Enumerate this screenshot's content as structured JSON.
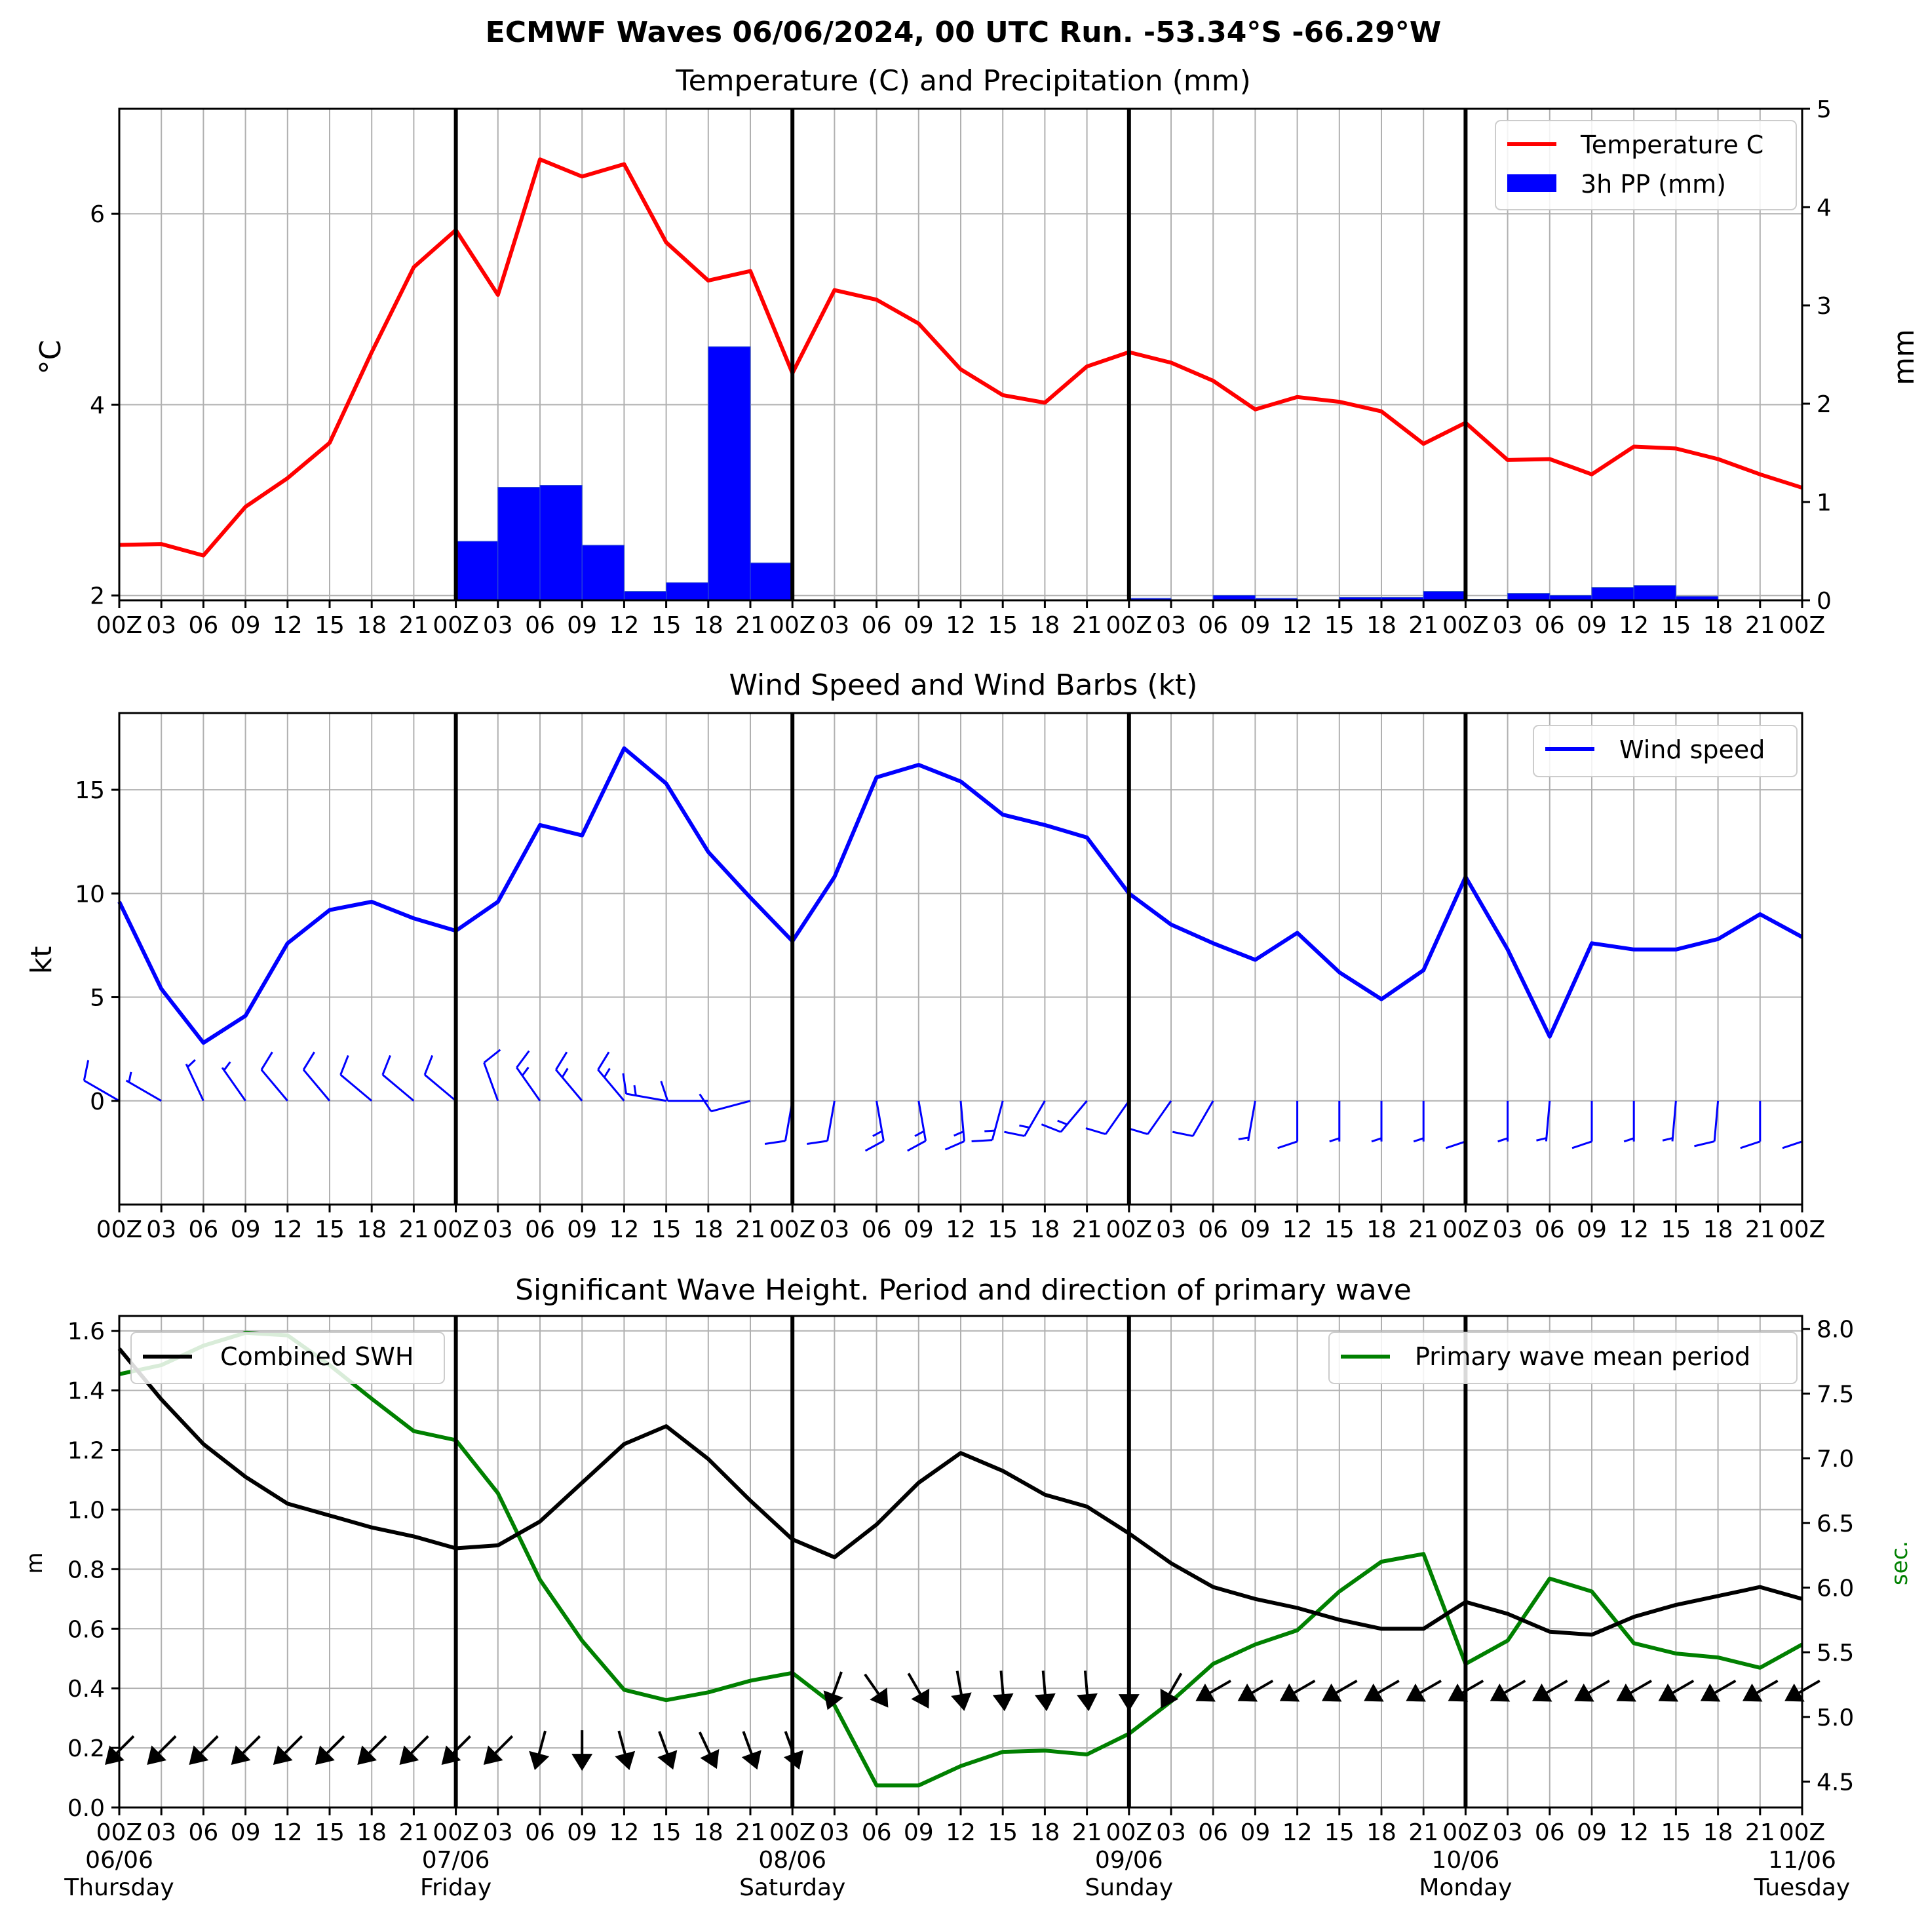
{
  "figure": {
    "title": "ECMWF Waves 06/06/2024, 00 UTC Run. -53.34°S -66.29°W"
  },
  "x_axis": {
    "hour_labels": [
      "00Z",
      "03",
      "06",
      "09",
      "12",
      "15",
      "18",
      "21",
      "00Z",
      "03",
      "06",
      "09",
      "12",
      "15",
      "18",
      "21",
      "00Z",
      "03",
      "06",
      "09",
      "12",
      "15",
      "18",
      "21",
      "00Z",
      "03",
      "06",
      "09",
      "12",
      "15",
      "18",
      "21",
      "00Z",
      "03",
      "06",
      "09",
      "12",
      "15",
      "18",
      "21",
      "00Z"
    ],
    "days": [
      {
        "date": "06/06",
        "weekday": "Thursday"
      },
      {
        "date": "07/06",
        "weekday": "Friday"
      },
      {
        "date": "08/06",
        "weekday": "Saturday"
      },
      {
        "date": "09/06",
        "weekday": "Sunday"
      },
      {
        "date": "10/06",
        "weekday": "Monday"
      },
      {
        "date": "11/06",
        "weekday": "Tuesday"
      }
    ]
  },
  "colors": {
    "temperature": "#ff0000",
    "precipitation": "#0000ff",
    "wind": "#0000ff",
    "swh": "#000000",
    "period": "#008000",
    "grid": "#b0b0b0"
  },
  "chart_data": [
    {
      "type": "line",
      "title": "Temperature (C) and Precipitation (mm)",
      "ylabel": "°C",
      "ylabel_right": "mm",
      "ylim": [
        1.95,
        7.1
      ],
      "ylim_right": [
        0,
        5
      ],
      "yticks": [
        2,
        4,
        6
      ],
      "yticks_right": [
        0,
        1,
        2,
        3,
        4,
        5
      ],
      "x_hours": [
        0,
        3,
        6,
        9,
        12,
        15,
        18,
        21,
        24,
        27,
        30,
        33,
        36,
        39,
        42,
        45,
        48,
        51,
        54,
        57,
        60,
        63,
        66,
        69,
        72,
        75,
        78,
        81,
        84,
        87,
        90,
        93,
        96,
        99,
        102,
        105,
        108,
        111,
        114,
        117,
        120
      ],
      "legend": [
        "Temperature C",
        "3h PP (mm)"
      ],
      "series": [
        {
          "name": "Temperature C",
          "kind": "line",
          "axis": "left",
          "values": [
            2.53,
            2.54,
            2.42,
            2.93,
            3.23,
            3.6,
            4.55,
            5.44,
            5.83,
            5.15,
            6.57,
            6.39,
            6.52,
            5.7,
            5.3,
            5.4,
            4.33,
            5.2,
            5.1,
            4.85,
            4.37,
            4.1,
            4.02,
            4.4,
            4.55,
            4.44,
            4.25,
            3.95,
            4.08,
            4.03,
            3.93,
            3.59,
            3.81,
            3.42,
            3.43,
            3.27,
            3.56,
            3.54,
            3.43,
            3.27,
            3.13
          ]
        },
        {
          "name": "3h PP (mm)",
          "kind": "bar",
          "axis": "right",
          "values": [
            0,
            0,
            0,
            0,
            0,
            0,
            0,
            0,
            0,
            0.6,
            1.15,
            1.17,
            0.56,
            0.09,
            0.18,
            2.58,
            0.38,
            0,
            0,
            0,
            0,
            0,
            0,
            0,
            0,
            0.02,
            0,
            0.05,
            0.02,
            0,
            0.03,
            0.03,
            0.09,
            0.01,
            0.07,
            0.05,
            0.13,
            0.15,
            0.04,
            0,
            0
          ]
        }
      ]
    },
    {
      "type": "line",
      "title": "Wind Speed and Wind Barbs (kt)",
      "ylabel": "kt",
      "ylim": [
        -5,
        18.7
      ],
      "yticks": [
        0,
        5,
        10,
        15
      ],
      "x_hours": [
        0,
        3,
        6,
        9,
        12,
        15,
        18,
        21,
        24,
        27,
        30,
        33,
        36,
        39,
        42,
        45,
        48,
        51,
        54,
        57,
        60,
        63,
        66,
        69,
        72,
        75,
        78,
        81,
        84,
        87,
        90,
        93,
        96,
        99,
        102,
        105,
        108,
        111,
        114,
        117,
        120
      ],
      "legend": [
        "Wind speed"
      ],
      "series": [
        {
          "name": "Wind speed",
          "values": [
            9.6,
            5.4,
            2.8,
            4.1,
            7.6,
            9.2,
            9.6,
            8.8,
            8.2,
            9.6,
            13.3,
            12.8,
            17.0,
            15.3,
            12.0,
            9.8,
            7.7,
            10.8,
            15.6,
            16.2,
            15.4,
            13.8,
            13.3,
            12.7,
            10.0,
            8.5,
            7.6,
            6.8,
            8.1,
            6.2,
            4.9,
            6.3,
            10.8,
            7.3,
            3.1,
            7.6,
            7.3,
            7.3,
            7.8,
            9.0,
            7.9
          ]
        }
      ],
      "barb_directions_deg": [
        300,
        300,
        335,
        325,
        320,
        320,
        310,
        310,
        310,
        340,
        325,
        320,
        320,
        280,
        270,
        255,
        190,
        190,
        170,
        170,
        175,
        195,
        210,
        220,
        215,
        215,
        210,
        190,
        180,
        180,
        180,
        180,
        180,
        180,
        185,
        180,
        180,
        185,
        185,
        180,
        180
      ]
    },
    {
      "type": "line",
      "title": "Significant Wave Height. Period and direction of primary wave",
      "ylabel": "m",
      "ylabel_right": "sec.",
      "ylim": [
        0.0,
        1.65
      ],
      "ylim_right": [
        4.3,
        8.1
      ],
      "yticks": [
        0.0,
        0.2,
        0.4,
        0.6,
        0.8,
        1.0,
        1.2,
        1.4,
        1.6
      ],
      "yticks_right": [
        4.5,
        5.0,
        5.5,
        6.0,
        6.5,
        7.0,
        7.5,
        8.0
      ],
      "x_hours": [
        0,
        3,
        6,
        9,
        12,
        15,
        18,
        21,
        24,
        27,
        30,
        33,
        36,
        39,
        42,
        45,
        48,
        51,
        54,
        57,
        60,
        63,
        66,
        69,
        72,
        75,
        78,
        81,
        84,
        87,
        90,
        93,
        96,
        99,
        102,
        105,
        108,
        111,
        114,
        117,
        120
      ],
      "legend": [
        "Combined SWH",
        "Primary wave mean period"
      ],
      "series": [
        {
          "name": "Combined SWH",
          "axis": "left",
          "values": [
            1.54,
            1.37,
            1.22,
            1.11,
            1.02,
            0.98,
            0.94,
            0.91,
            0.87,
            0.88,
            0.96,
            1.09,
            1.22,
            1.28,
            1.17,
            1.03,
            0.9,
            0.84,
            0.95,
            1.09,
            1.19,
            1.13,
            1.05,
            1.01,
            0.92,
            0.82,
            0.74,
            0.7,
            0.67,
            0.63,
            0.6,
            0.6,
            0.69,
            0.65,
            0.59,
            0.58,
            0.64,
            0.68,
            0.71,
            0.74,
            0.7
          ]
        },
        {
          "name": "Primary wave mean period",
          "axis": "right",
          "values": [
            7.65,
            7.72,
            7.87,
            7.97,
            7.95,
            7.72,
            7.46,
            7.21,
            7.14,
            6.73,
            6.06,
            5.59,
            5.21,
            5.13,
            5.19,
            5.28,
            5.34,
            5.09,
            4.47,
            4.47,
            4.62,
            4.73,
            4.74,
            4.71,
            4.87,
            5.12,
            5.41,
            5.56,
            5.67,
            5.97,
            6.2,
            6.26,
            5.41,
            5.59,
            6.07,
            5.97,
            5.57,
            5.49,
            5.46,
            5.38,
            5.56
          ]
        }
      ],
      "arrow_directions_deg": [
        45,
        45,
        45,
        45,
        45,
        45,
        45,
        45,
        45,
        45,
        15,
        0,
        345,
        340,
        335,
        340,
        340,
        20,
        325,
        330,
        350,
        355,
        355,
        355,
        360,
        30,
        60,
        60,
        60,
        60,
        60,
        60,
        60,
        60,
        60,
        60,
        60,
        60,
        60,
        60,
        60
      ]
    }
  ]
}
